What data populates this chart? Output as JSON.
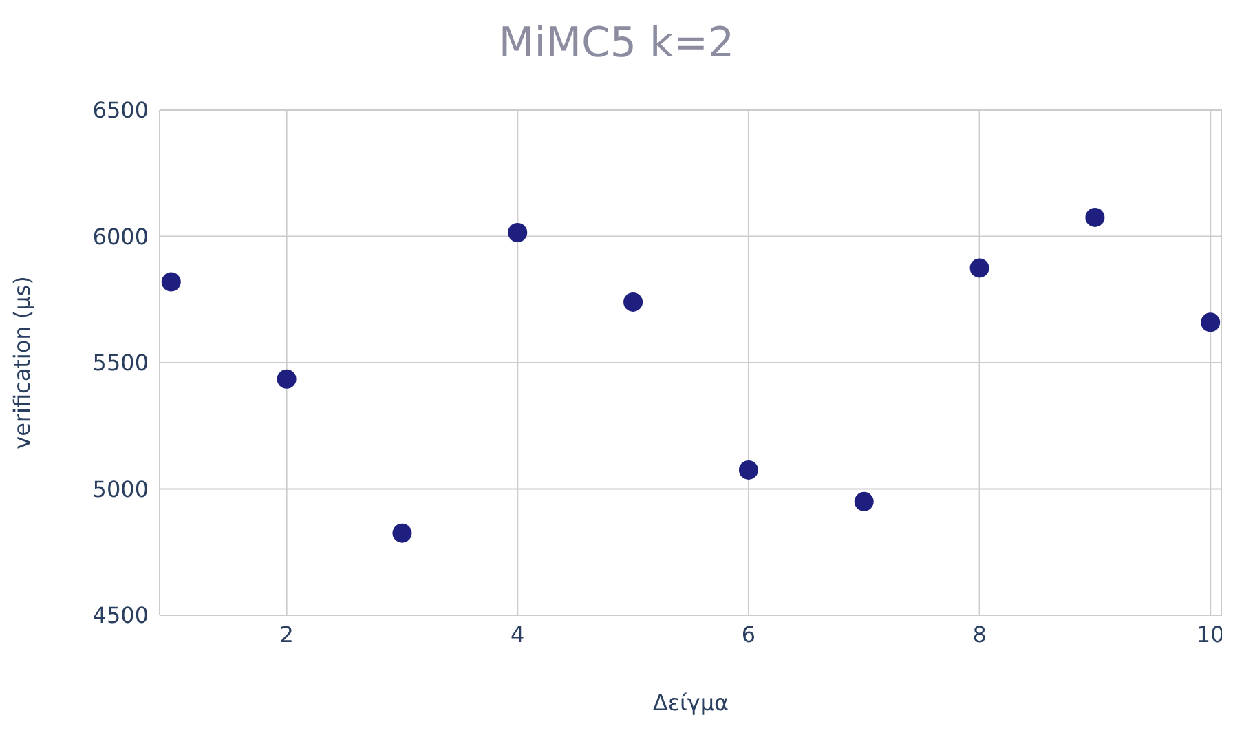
{
  "chart_data": {
    "type": "scatter",
    "title": "MiMC5 k=2",
    "xlabel": "Δείγμα",
    "ylabel": "verification (μs)",
    "x": [
      1,
      2,
      3,
      4,
      5,
      6,
      7,
      8,
      9,
      10
    ],
    "series": [
      {
        "color": "#1f1f7f",
        "values": [
          5820,
          5435,
          4825,
          6015,
          5740,
          5075,
          4950,
          5875,
          6075,
          5660
        ]
      }
    ],
    "xlim": [
      0.9,
      10.1
    ],
    "xticks": [
      2,
      4,
      6,
      8,
      10
    ],
    "ylim": [
      4500,
      6500
    ],
    "yticks": [
      4500,
      5000,
      5500,
      6000,
      6500
    ],
    "grid": true,
    "marker": "circle",
    "legend": false
  }
}
